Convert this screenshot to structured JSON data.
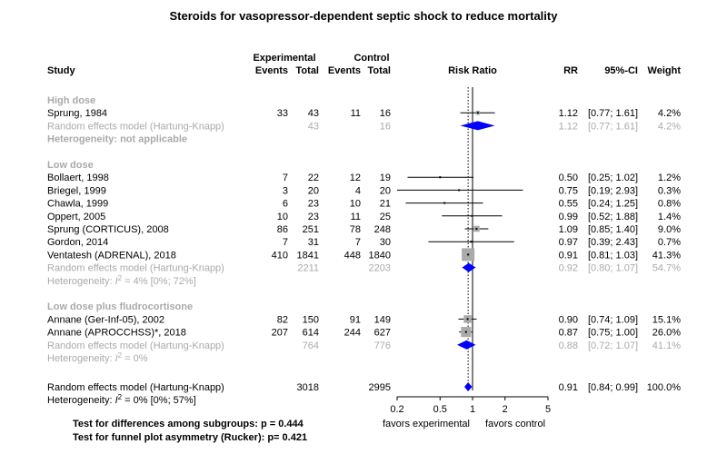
{
  "chart_data": {
    "type": "forest",
    "title": "Steroids for vasopressor-dependent septic shock to reduce mortality",
    "header": {
      "group_exp": "Experimental",
      "group_ctrl": "Control",
      "study": "Study",
      "events": "Events",
      "total": "Total",
      "risk_ratio": "Risk Ratio",
      "rr": "RR",
      "ci": "95%-CI",
      "weight": "Weight"
    },
    "xaxis": {
      "scale": "log",
      "ticks": [
        0.2,
        0.5,
        1,
        2,
        5
      ],
      "tick_labels": [
        "0.2",
        "0.5",
        "1",
        "2",
        "5"
      ],
      "null_value": 1,
      "pooled_reference": 0.91,
      "label_left": "favors experimental",
      "label_right": "favors control"
    },
    "subgroups": [
      {
        "label": "High dose",
        "studies": [
          {
            "study": "Sprung, 1984",
            "e_events": "33",
            "e_total": "43",
            "c_events": "11",
            "c_total": "16",
            "rr_text": "1.12",
            "ci_text": "[0.77; 1.61]",
            "weight_text": "4.2%",
            "rr": 1.12,
            "lo": 0.77,
            "hi": 1.61,
            "weight": 4.2
          }
        ],
        "pooled": {
          "label": "Random effects model  (Hartung-Knapp)",
          "e_total": "43",
          "c_total": "16",
          "rr_text": "1.12",
          "ci_text": "[0.77; 1.61]",
          "weight_text": "4.2%",
          "rr": 1.12,
          "lo": 0.77,
          "hi": 1.61
        },
        "heterogeneity": "Heterogeneity: not applicable"
      },
      {
        "label": "Low dose",
        "studies": [
          {
            "study": "Bollaert, 1998",
            "e_events": "7",
            "e_total": "22",
            "c_events": "12",
            "c_total": "19",
            "rr_text": "0.50",
            "ci_text": "[0.25; 1.02]",
            "weight_text": "1.2%",
            "rr": 0.5,
            "lo": 0.25,
            "hi": 1.02,
            "weight": 1.2
          },
          {
            "study": "Briegel, 1999",
            "e_events": "3",
            "e_total": "20",
            "c_events": "4",
            "c_total": "20",
            "rr_text": "0.75",
            "ci_text": "[0.19; 2.93]",
            "weight_text": "0.3%",
            "rr": 0.75,
            "lo": 0.19,
            "hi": 2.93,
            "weight": 0.3
          },
          {
            "study": "Chawla, 1999",
            "e_events": "6",
            "e_total": "23",
            "c_events": "10",
            "c_total": "21",
            "rr_text": "0.55",
            "ci_text": "[0.24; 1.25]",
            "weight_text": "0.8%",
            "rr": 0.55,
            "lo": 0.24,
            "hi": 1.25,
            "weight": 0.8
          },
          {
            "study": "Oppert, 2005",
            "e_events": "10",
            "e_total": "23",
            "c_events": "11",
            "c_total": "25",
            "rr_text": "0.99",
            "ci_text": "[0.52; 1.88]",
            "weight_text": "1.4%",
            "rr": 0.99,
            "lo": 0.52,
            "hi": 1.88,
            "weight": 1.4
          },
          {
            "study": "Sprung (CORTICUS), 2008",
            "e_events": "86",
            "e_total": "251",
            "c_events": "78",
            "c_total": "248",
            "rr_text": "1.09",
            "ci_text": "[0.85; 1.40]",
            "weight_text": "9.0%",
            "rr": 1.09,
            "lo": 0.85,
            "hi": 1.4,
            "weight": 9.0
          },
          {
            "study": "Gordon, 2014",
            "e_events": "7",
            "e_total": "31",
            "c_events": "7",
            "c_total": "30",
            "rr_text": "0.97",
            "ci_text": "[0.39; 2.43]",
            "weight_text": "0.7%",
            "rr": 0.97,
            "lo": 0.39,
            "hi": 2.43,
            "weight": 0.7
          },
          {
            "study": "Ventatesh  (ADRENAL), 2018",
            "e_events": "410",
            "e_total": "1841",
            "c_events": "448",
            "c_total": "1840",
            "rr_text": "0.91",
            "ci_text": "[0.81; 1.03]",
            "weight_text": "41.3%",
            "rr": 0.91,
            "lo": 0.81,
            "hi": 1.03,
            "weight": 41.3
          }
        ],
        "pooled": {
          "label": "Random effects model  (Hartung-Knapp)",
          "e_total": "2211",
          "c_total": "2203",
          "rr_text": "0.92",
          "ci_text": "[0.80; 1.07]",
          "weight_text": "54.7%",
          "rr": 0.92,
          "lo": 0.8,
          "hi": 1.07
        },
        "heterogeneity": "Heterogeneity: I² = 4% [0%; 72%]"
      },
      {
        "label": "Low dose plus fludrocortisone",
        "studies": [
          {
            "study": "Annane (Ger-Inf-05), 2002",
            "e_events": "82",
            "e_total": "150",
            "c_events": "91",
            "c_total": "149",
            "rr_text": "0.90",
            "ci_text": "[0.74; 1.09]",
            "weight_text": "15.1%",
            "rr": 0.9,
            "lo": 0.74,
            "hi": 1.09,
            "weight": 15.1
          },
          {
            "study": "Annane (APROCCHSS)*, 2018",
            "e_events": "207",
            "e_total": "614",
            "c_events": "244",
            "c_total": "627",
            "rr_text": "0.87",
            "ci_text": "[0.75; 1.00]",
            "weight_text": "26.0%",
            "rr": 0.87,
            "lo": 0.75,
            "hi": 1.0,
            "weight": 26.0
          }
        ],
        "pooled": {
          "label": "Random effects model  (Hartung-Knapp)",
          "e_total": "764",
          "c_total": "776",
          "rr_text": "0.88",
          "ci_text": "[0.72; 1.07]",
          "weight_text": "41.1%",
          "rr": 0.88,
          "lo": 0.72,
          "hi": 1.07
        },
        "heterogeneity": "Heterogeneity: I² = 0%"
      }
    ],
    "overall": {
      "label": "Random effects model  (Hartung-Knapp)",
      "e_total": "3018",
      "c_total": "2995",
      "rr_text": "0.91",
      "ci_text": "[0.84; 0.99]",
      "weight_text": "100.0%",
      "rr": 0.91,
      "lo": 0.84,
      "hi": 0.99,
      "heterogeneity": "Heterogeneity: I² = 0% [0%; 57%]"
    },
    "footnotes": [
      "Test for differences among subgroups: p = 0.444",
      "Test for funnel plot asymmetry (Rucker): p= 0.421"
    ]
  }
}
